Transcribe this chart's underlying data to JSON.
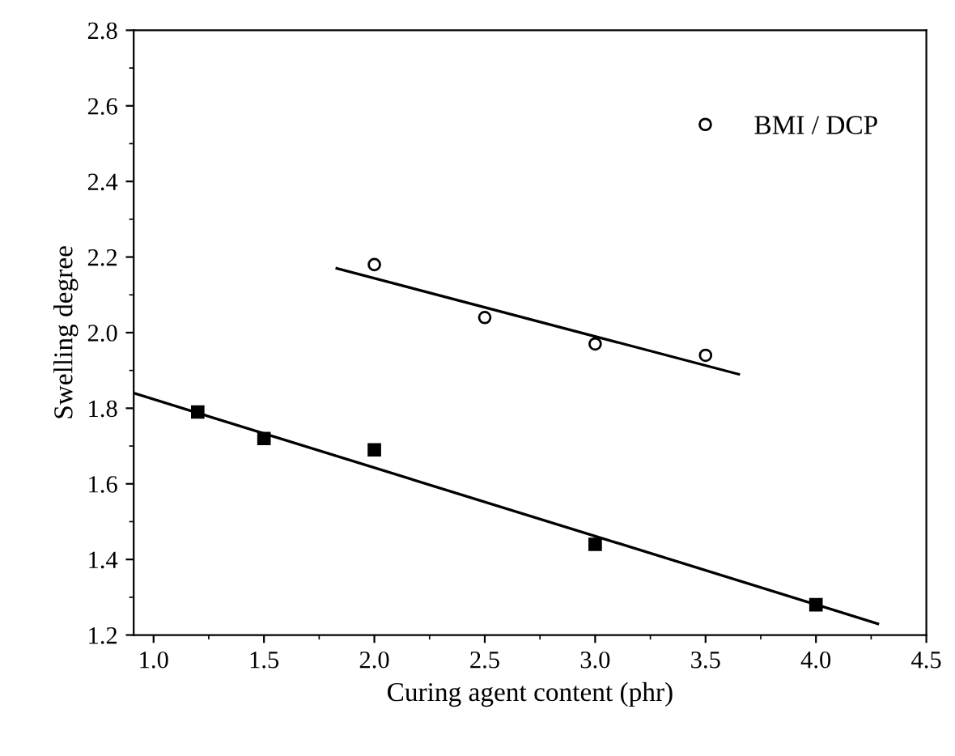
{
  "chart_data": {
    "type": "scatter",
    "xlabel": "Curing agent content (phr)",
    "ylabel": "Swelling degree",
    "xlim": [
      0.91,
      4.5
    ],
    "xticks": [
      {
        "value": 1,
        "label": "1.0"
      },
      1.5,
      {
        "value": 2,
        "label": "2.0"
      },
      2.5,
      {
        "value": 3,
        "label": "3.0"
      },
      3.5,
      {
        "value": 4,
        "label": "4.0"
      },
      4.5
    ],
    "ylim": [
      1.2,
      2.8
    ],
    "yticks": [
      1.2,
      1.4,
      1.6,
      1.8,
      {
        "value": 2,
        "label": "2.0"
      },
      2.2,
      2.4,
      2.6,
      2.8
    ],
    "grid": false,
    "legend": "top right",
    "series": [
      {
        "name": "BMI / DCP",
        "marker": "circle",
        "color": "#000000",
        "x": [
          2.0,
          2.5,
          3.0,
          3.5
        ],
        "values": [
          2.18,
          2.04,
          1.97,
          1.94
        ]
      },
      {
        "marker": "square",
        "color": "#000000",
        "x": [
          1.2,
          1.5,
          2.0,
          3.0,
          4.0
        ],
        "values": [
          1.79,
          1.72,
          1.69,
          1.44,
          1.28
        ]
      },
      {
        "type": "line",
        "marker": "none",
        "color": "#000000",
        "x": [
          1.83,
          3.65
        ],
        "values": [
          2.17,
          1.89
        ]
      },
      {
        "type": "line",
        "marker": "none",
        "color": "#000000",
        "x": [
          0.91,
          4.28
        ],
        "values": [
          1.84,
          1.23
        ]
      }
    ]
  }
}
